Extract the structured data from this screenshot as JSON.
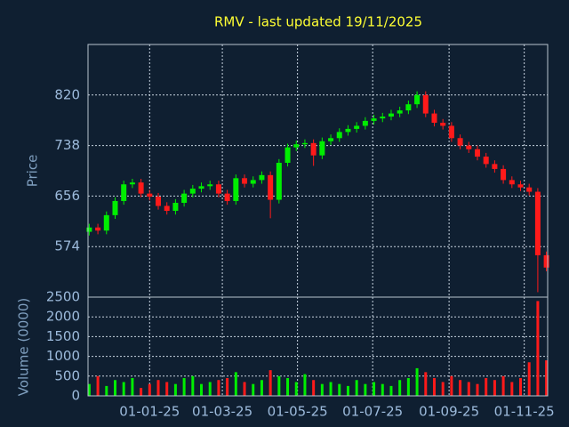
{
  "chart_data": {
    "type": "candlestick",
    "title": "RMV - last updated 19/11/2025",
    "ylabel": "Price",
    "y2label": "Volume (0000)",
    "x": [
      "2024-11-13",
      "2024-11-20",
      "2024-11-27",
      "2024-12-04",
      "2024-12-11",
      "2024-12-18",
      "2024-12-25",
      "2025-01-01",
      "2025-01-08",
      "2025-01-15",
      "2025-01-22",
      "2025-01-29",
      "2025-02-05",
      "2025-02-12",
      "2025-02-19",
      "2025-02-26",
      "2025-03-05",
      "2025-03-12",
      "2025-03-19",
      "2025-03-26",
      "2025-04-02",
      "2025-04-09",
      "2025-04-16",
      "2025-04-23",
      "2025-04-30",
      "2025-05-07",
      "2025-05-14",
      "2025-05-21",
      "2025-05-28",
      "2025-06-04",
      "2025-06-11",
      "2025-06-18",
      "2025-06-25",
      "2025-07-02",
      "2025-07-09",
      "2025-07-16",
      "2025-07-23",
      "2025-07-30",
      "2025-08-06",
      "2025-08-13",
      "2025-08-20",
      "2025-08-27",
      "2025-09-03",
      "2025-09-10",
      "2025-09-17",
      "2025-09-24",
      "2025-10-01",
      "2025-10-08",
      "2025-10-15",
      "2025-10-22",
      "2025-10-29",
      "2025-11-05",
      "2025-11-12",
      "2025-11-19"
    ],
    "open": [
      598,
      605,
      600,
      625,
      648,
      675,
      678,
      660,
      655,
      640,
      632,
      645,
      660,
      668,
      672,
      675,
      660,
      648,
      685,
      676,
      682,
      690,
      650,
      710,
      735,
      740,
      742,
      722,
      745,
      750,
      760,
      765,
      770,
      778,
      782,
      785,
      790,
      795,
      805,
      820,
      790,
      775,
      770,
      750,
      738,
      732,
      720,
      708,
      700,
      682,
      675,
      670,
      663,
      560
    ],
    "high": [
      611,
      611,
      631,
      654,
      681,
      684,
      684,
      666,
      661,
      646,
      651,
      666,
      674,
      678,
      681,
      681,
      666,
      691,
      691,
      688,
      696,
      696,
      716,
      741,
      746,
      748,
      748,
      751,
      756,
      766,
      771,
      776,
      784,
      788,
      791,
      796,
      801,
      811,
      826,
      826,
      796,
      781,
      776,
      756,
      744,
      738,
      726,
      714,
      706,
      688,
      681,
      676,
      669,
      566
    ],
    "low": [
      592,
      594,
      594,
      619,
      642,
      669,
      654,
      649,
      634,
      626,
      626,
      639,
      654,
      662,
      666,
      654,
      642,
      642,
      670,
      670,
      676,
      620,
      644,
      704,
      729,
      734,
      705,
      716,
      739,
      744,
      754,
      759,
      764,
      772,
      776,
      779,
      784,
      789,
      799,
      784,
      769,
      764,
      744,
      732,
      726,
      714,
      702,
      694,
      676,
      669,
      664,
      657,
      500,
      534
    ],
    "close": [
      605,
      600,
      625,
      648,
      675,
      678,
      660,
      655,
      640,
      632,
      645,
      660,
      668,
      672,
      675,
      660,
      648,
      685,
      676,
      682,
      690,
      650,
      710,
      735,
      740,
      742,
      722,
      745,
      750,
      760,
      765,
      770,
      778,
      782,
      785,
      790,
      795,
      805,
      820,
      790,
      775,
      770,
      750,
      738,
      732,
      720,
      708,
      700,
      682,
      675,
      670,
      663,
      560,
      540
    ],
    "volume": [
      300,
      500,
      250,
      400,
      350,
      450,
      200,
      300,
      400,
      350,
      300,
      450,
      500,
      300,
      350,
      400,
      450,
      600,
      350,
      300,
      400,
      650,
      500,
      450,
      350,
      550,
      400,
      300,
      350,
      300,
      250,
      400,
      300,
      350,
      300,
      250,
      400,
      450,
      700,
      600,
      450,
      350,
      500,
      400,
      350,
      300,
      450,
      400,
      500,
      350,
      450,
      850,
      2400,
      900
    ],
    "up_color": "#00ee00",
    "down_color": "#ff1a1a",
    "xlim": [
      "2024-11-12",
      "2025-11-20"
    ],
    "xticks": [
      {
        "value": "2025-01-01",
        "label": "01-01-25"
      },
      {
        "value": "2025-03-01",
        "label": "01-03-25"
      },
      {
        "value": "2025-05-01",
        "label": "01-05-25"
      },
      {
        "value": "2025-07-01",
        "label": "01-07-25"
      },
      {
        "value": "2025-09-01",
        "label": "01-09-25"
      },
      {
        "value": "2025-11-01",
        "label": "01-11-25"
      }
    ],
    "ylim": [
      492,
      902
    ],
    "yticks": [
      574,
      656,
      738,
      820
    ],
    "y2lim": [
      0,
      2500
    ],
    "y2ticks": [
      0,
      500,
      1000,
      1500,
      2000,
      2500
    ],
    "grid": true
  }
}
